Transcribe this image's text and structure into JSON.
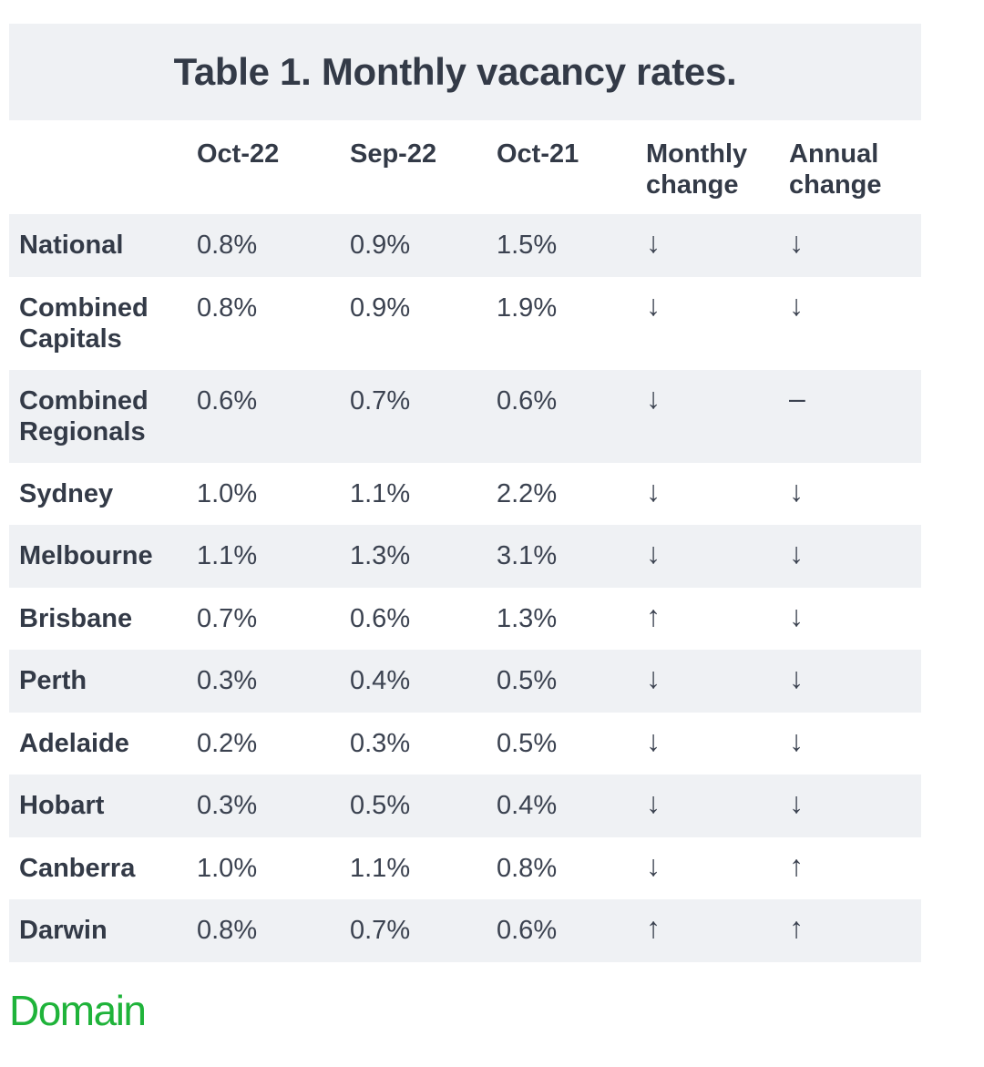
{
  "title": "Table 1. Monthly vacancy rates.",
  "columns": [
    "Oct-22",
    "Sep-22",
    "Oct-21",
    "Monthly\nchange",
    "Annual\nchange"
  ],
  "rows": [
    {
      "name": "National",
      "oct22": "0.8%",
      "sep22": "0.9%",
      "oct21": "1.5%",
      "monthly": "↓",
      "annual": "↓"
    },
    {
      "name": "Combined\nCapitals",
      "oct22": "0.8%",
      "sep22": "0.9%",
      "oct21": "1.9%",
      "monthly": "↓",
      "annual": "↓"
    },
    {
      "name": "Combined\nRegionals",
      "oct22": "0.6%",
      "sep22": "0.7%",
      "oct21": "0.6%",
      "monthly": "↓",
      "annual": "–"
    },
    {
      "name": "Sydney",
      "oct22": "1.0%",
      "sep22": "1.1%",
      "oct21": "2.2%",
      "monthly": "↓",
      "annual": "↓"
    },
    {
      "name": "Melbourne",
      "oct22": "1.1%",
      "sep22": "1.3%",
      "oct21": "3.1%",
      "monthly": "↓",
      "annual": "↓"
    },
    {
      "name": "Brisbane",
      "oct22": "0.7%",
      "sep22": "0.6%",
      "oct21": "1.3%",
      "monthly": "↑",
      "annual": "↓"
    },
    {
      "name": "Perth",
      "oct22": "0.3%",
      "sep22": "0.4%",
      "oct21": "0.5%",
      "monthly": "↓",
      "annual": "↓"
    },
    {
      "name": "Adelaide",
      "oct22": "0.2%",
      "sep22": "0.3%",
      "oct21": "0.5%",
      "monthly": "↓",
      "annual": "↓"
    },
    {
      "name": "Hobart",
      "oct22": "0.3%",
      "sep22": "0.5%",
      "oct21": "0.4%",
      "monthly": "↓",
      "annual": "↓"
    },
    {
      "name": "Canberra",
      "oct22": "1.0%",
      "sep22": "1.1%",
      "oct21": "0.8%",
      "monthly": "↓",
      "annual": "↑"
    },
    {
      "name": "Darwin",
      "oct22": "0.8%",
      "sep22": "0.7%",
      "oct21": "0.6%",
      "monthly": "↑",
      "annual": "↑"
    }
  ],
  "logo_text": "Domain",
  "colors": {
    "shade": "#eff1f4",
    "text": "#333a47",
    "brand_green": "#1fb33a"
  }
}
